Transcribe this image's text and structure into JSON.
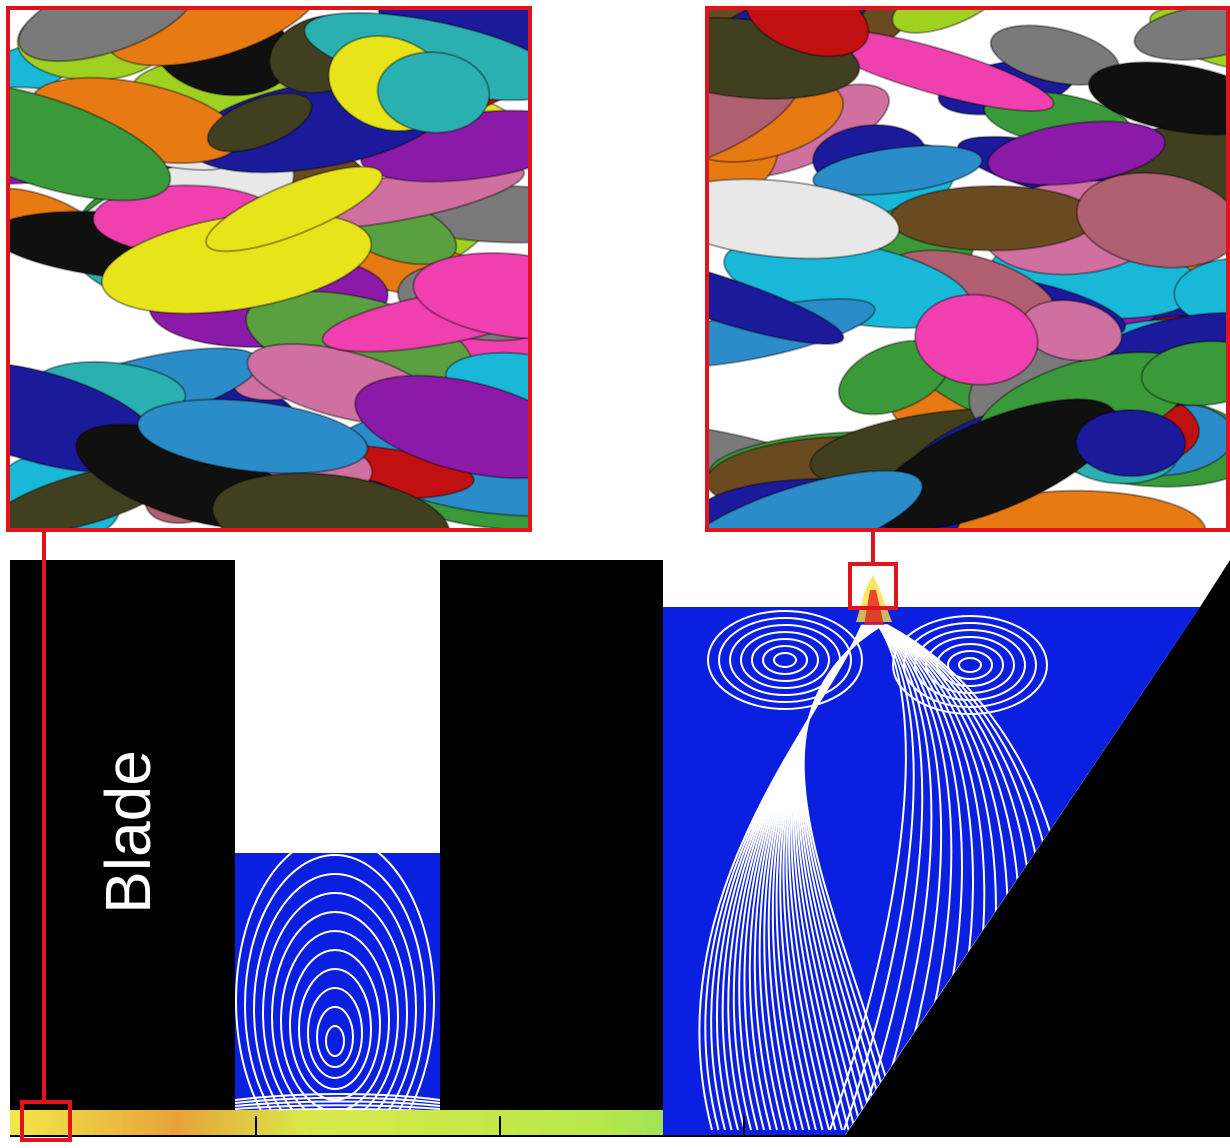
{
  "labels": {
    "blade": "Blade"
  }
}
